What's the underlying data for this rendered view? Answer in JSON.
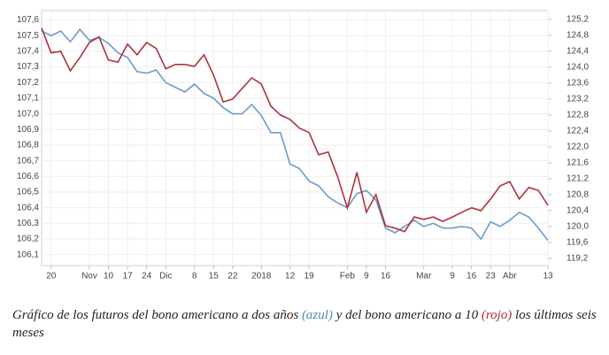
{
  "chart_data": {
    "type": "line",
    "categories": [
      null,
      "20",
      null,
      null,
      null,
      "Nov",
      null,
      "10",
      null,
      "17",
      null,
      "24",
      null,
      "Dic",
      null,
      null,
      "8",
      null,
      "15",
      null,
      "22",
      null,
      null,
      "2018",
      null,
      null,
      "12",
      null,
      "19",
      null,
      null,
      null,
      "Feb",
      null,
      "9",
      null,
      "16",
      null,
      null,
      null,
      "Mar",
      null,
      null,
      "9",
      null,
      "16",
      null,
      "23",
      null,
      "Abr",
      null,
      null,
      null,
      "13"
    ],
    "series": [
      {
        "name": "azul",
        "color": "#6a9ccc",
        "axis": "y",
        "values": [
          107.53,
          107.5,
          107.53,
          107.46,
          107.54,
          107.47,
          107.49,
          107.45,
          107.39,
          107.36,
          107.27,
          107.26,
          107.28,
          107.2,
          107.17,
          107.14,
          107.19,
          107.13,
          107.1,
          107.04,
          107.0,
          107.0,
          107.06,
          106.99,
          106.88,
          106.88,
          106.68,
          106.65,
          106.57,
          106.54,
          106.47,
          106.43,
          106.4,
          106.49,
          106.51,
          106.45,
          106.27,
          106.24,
          106.28,
          106.32,
          106.28,
          106.3,
          106.27,
          106.27,
          106.28,
          106.27,
          106.2,
          106.31,
          106.28,
          106.32,
          106.37,
          106.34,
          106.27,
          106.19
        ]
      },
      {
        "name": "rojo",
        "color": "#b0303c",
        "axis": "y2",
        "values": [
          124.98,
          124.36,
          124.4,
          123.91,
          124.24,
          124.62,
          124.76,
          124.18,
          124.13,
          124.58,
          124.31,
          124.62,
          124.47,
          123.96,
          124.07,
          124.07,
          124.02,
          124.31,
          123.8,
          123.13,
          123.2,
          123.47,
          123.73,
          123.58,
          123.02,
          122.8,
          122.69,
          122.47,
          122.36,
          121.8,
          121.87,
          121.24,
          120.47,
          121.36,
          120.36,
          120.8,
          120.02,
          119.96,
          119.87,
          120.24,
          120.18,
          120.24,
          120.13,
          120.24,
          120.36,
          120.47,
          120.4,
          120.69,
          121.02,
          121.13,
          120.69,
          120.98,
          120.91,
          120.53
        ]
      }
    ],
    "ylim": [
      106.03,
      107.66
    ],
    "yticks": [
      {
        "value": 107.6,
        "label": "107,6"
      },
      {
        "value": 107.5,
        "label": "107,5"
      },
      {
        "value": 107.4,
        "label": "107,4"
      },
      {
        "value": 107.3,
        "label": "107,3"
      },
      {
        "value": 107.2,
        "label": "107,2"
      },
      {
        "value": 107.1,
        "label": "107,1"
      },
      {
        "value": 107.0,
        "label": "107,0"
      },
      {
        "value": 106.9,
        "label": "106,9"
      },
      {
        "value": 106.8,
        "label": "106,8"
      },
      {
        "value": 106.7,
        "label": "106,7"
      },
      {
        "value": 106.6,
        "label": "106,6"
      },
      {
        "value": 106.5,
        "label": "106,5"
      },
      {
        "value": 106.4,
        "label": "106,4"
      },
      {
        "value": 106.3,
        "label": "106,3"
      },
      {
        "value": 106.2,
        "label": "106,2"
      },
      {
        "value": 106.1,
        "label": "106,1"
      }
    ],
    "y2lim": [
      119.02,
      125.42
    ],
    "y2ticks": [
      {
        "value": 125.2,
        "label": "125,2"
      },
      {
        "value": 124.8,
        "label": "124,8"
      },
      {
        "value": 124.4,
        "label": "124,4"
      },
      {
        "value": 124.0,
        "label": "124,0"
      },
      {
        "value": 123.6,
        "label": "123,6"
      },
      {
        "value": 123.2,
        "label": "123,2"
      },
      {
        "value": 122.8,
        "label": "122,8"
      },
      {
        "value": 122.4,
        "label": "122,4"
      },
      {
        "value": 122.0,
        "label": "122,0"
      },
      {
        "value": 121.6,
        "label": "121,6"
      },
      {
        "value": 121.2,
        "label": "121,2"
      },
      {
        "value": 120.8,
        "label": "120,8"
      },
      {
        "value": 120.4,
        "label": "120,4"
      },
      {
        "value": 120.0,
        "label": "120,0"
      },
      {
        "value": 119.6,
        "label": "119,6"
      },
      {
        "value": 119.2,
        "label": "119,2"
      }
    ],
    "grid": true,
    "caption": [
      "Gráfico de los futuros del bono americano a dos años ",
      "(azul)",
      " y del bono americano a 10 ",
      "(rojo)",
      " los últimos seis meses"
    ]
  }
}
